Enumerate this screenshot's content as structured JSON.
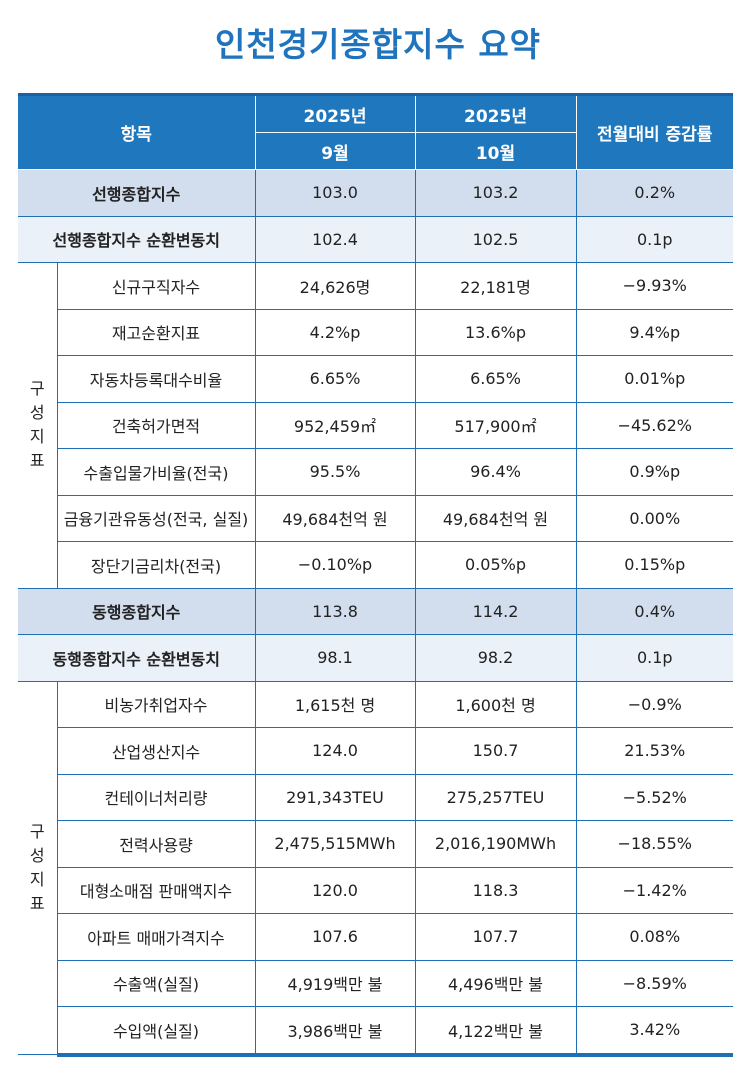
{
  "title": "인천경기종합지수 요약",
  "header": {
    "item": "항목",
    "year1": "2025년",
    "year2": "2025년",
    "month1": "9월",
    "month2": "10월",
    "change": "전월대비 증감률"
  },
  "leading": {
    "composite": {
      "label": "선행종합지수",
      "sep": "103.0",
      "oct": "103.2",
      "change": "0.2%"
    },
    "cycle": {
      "label": "선행종합지수 순환변동치",
      "sep": "102.4",
      "oct": "102.5",
      "change": "0.1p"
    },
    "group_label": [
      "구",
      "성",
      "지",
      "표"
    ],
    "components": [
      {
        "label": "신규구직자수",
        "sep": "24,626명",
        "oct": "22,181명",
        "change": "−9.93%"
      },
      {
        "label": "재고순환지표",
        "sep": "4.2%p",
        "oct": "13.6%p",
        "change": "9.4%p"
      },
      {
        "label": "자동차등록대수비율",
        "sep": "6.65%",
        "oct": "6.65%",
        "change": "0.01%p"
      },
      {
        "label": "건축허가면적",
        "sep": "952,459㎡",
        "oct": "517,900㎡",
        "change": "−45.62%"
      },
      {
        "label": "수출입물가비율(전국)",
        "sep": "95.5%",
        "oct": "96.4%",
        "change": "0.9%p"
      },
      {
        "label": "금융기관유동성(전국, 실질)",
        "sep": "49,684천억 원",
        "oct": "49,684천억 원",
        "change": "0.00%"
      },
      {
        "label": "장단기금리차(전국)",
        "sep": "−0.10%p",
        "oct": "0.05%p",
        "change": "0.15%p"
      }
    ]
  },
  "coincident": {
    "composite": {
      "label": "동행종합지수",
      "sep": "113.8",
      "oct": "114.2",
      "change": "0.4%"
    },
    "cycle": {
      "label": "동행종합지수 순환변동치",
      "sep": "98.1",
      "oct": "98.2",
      "change": "0.1p"
    },
    "group_label": [
      "구",
      "성",
      "지",
      "표"
    ],
    "components": [
      {
        "label": "비농가취업자수",
        "sep": "1,615천 명",
        "oct": "1,600천 명",
        "change": "−0.9%"
      },
      {
        "label": "산업생산지수",
        "sep": "124.0",
        "oct": "150.7",
        "change": "21.53%"
      },
      {
        "label": "컨테이너처리량",
        "sep": "291,343TEU",
        "oct": "275,257TEU",
        "change": "−5.52%"
      },
      {
        "label": "전력사용량",
        "sep": "2,475,515MWh",
        "oct": "2,016,190MWh",
        "change": "−18.55%"
      },
      {
        "label": "대형소매점 판매액지수",
        "sep": "120.0",
        "oct": "118.3",
        "change": "−1.42%"
      },
      {
        "label": "아파트 매매가격지수",
        "sep": "107.6",
        "oct": "107.7",
        "change": "0.08%"
      },
      {
        "label": "수출액(실질)",
        "sep": "4,919백만 불",
        "oct": "4,496백만 불",
        "change": "−8.59%"
      },
      {
        "label": "수입액(실질)",
        "sep": "3,986백만 불",
        "oct": "4,122백만 불",
        "change": "3.42%"
      }
    ]
  }
}
